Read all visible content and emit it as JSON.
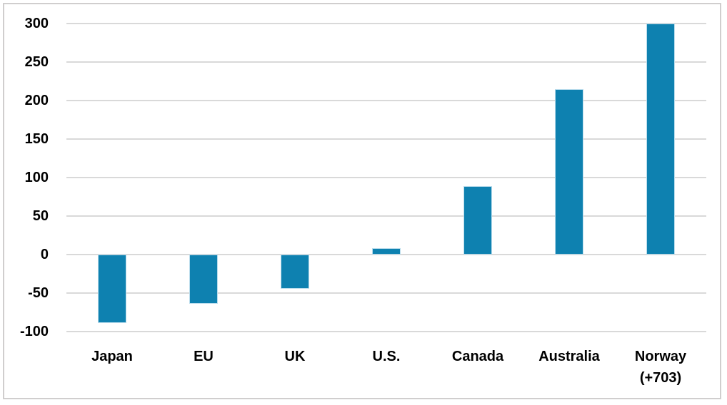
{
  "chart_data": {
    "type": "bar",
    "title": "",
    "xlabel": "",
    "ylabel": "",
    "categories": [
      "Japan",
      "EU",
      "UK",
      "U.S.",
      "Canada",
      "Australia",
      "Norway"
    ],
    "category_label_line2": [
      "",
      "",
      "",
      "",
      "",
      "",
      "(+703)"
    ],
    "values": [
      -89,
      -64,
      -44,
      8,
      89,
      215,
      703
    ],
    "values_note": "Norway bar is clipped at the axis maximum of 300; its actual value +703 is shown in the category label",
    "ylim": [
      -100,
      300
    ],
    "ytick_step": 50,
    "yticks": [
      300,
      250,
      200,
      150,
      100,
      50,
      0,
      -50,
      -100
    ],
    "clip_bars_to_ylim": true,
    "grid": true,
    "legend_position": "none",
    "colors": {
      "bar_fill": "#0e81b0",
      "bar_edge": "#b9dcec",
      "gridline": "#d9d9d9",
      "tick_text": "#000000",
      "frame_border": "#d0cece",
      "background": "#ffffff"
    }
  }
}
